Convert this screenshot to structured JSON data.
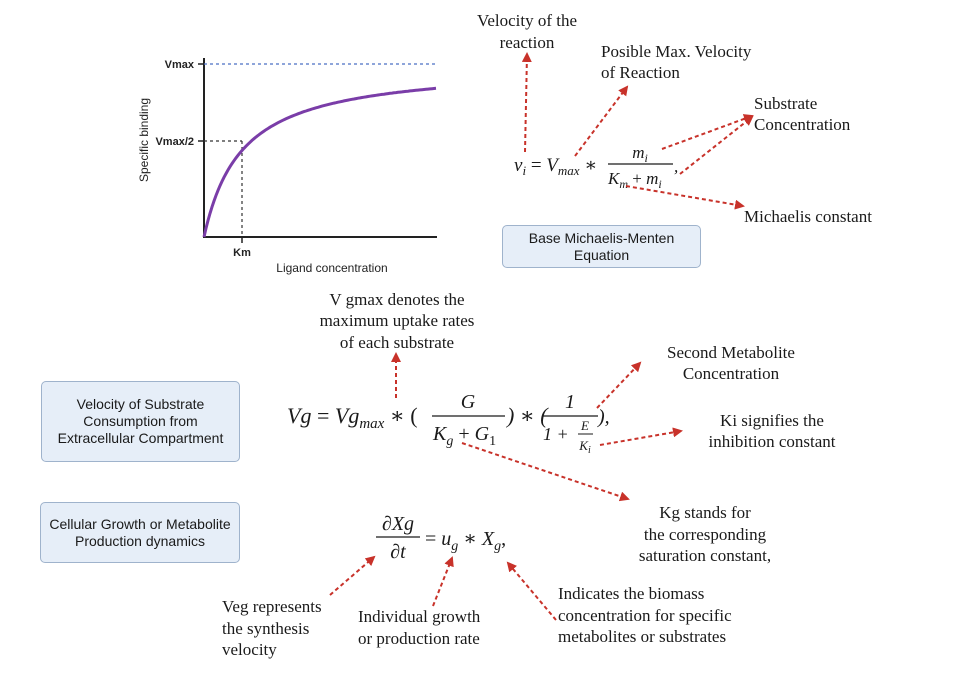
{
  "graph": {
    "y_label": "Specific binding",
    "x_label": "Ligand concentration",
    "vmax_label": "Vmax",
    "vmax_half_label": "Vmax/2",
    "km_label": "Km"
  },
  "equations": {
    "michaelis_menten": "v_i = V_max * m_i / (K_m + m_i),",
    "substrate_consumption": "Vg = Vg_max * (G / (K_g + G_1)) * (1 / (1 + E/K_i)),",
    "growth": "∂Xg/∂t = u_g * X_g,"
  },
  "boxes": {
    "base_mm": "Base Michaelis-Menten Equation",
    "velocity_substrate": "Velocity of Substrate Consumption from Extracellular Compartment",
    "cellular_growth": "Cellular Growth or Metabolite Production dynamics"
  },
  "labels": {
    "velocity_reaction": [
      "Velocity of the",
      "reaction"
    ],
    "possible_max": [
      "Posible Max. Velocity",
      "of Reaction"
    ],
    "substrate_conc": [
      "Substrate",
      "Concentration"
    ],
    "michaelis_constant": "Michaelis constant",
    "vgmax": [
      "V gmax denotes the",
      "maximum uptake rates",
      "of each substrate"
    ],
    "second_metabolite": [
      "Second Metabolite",
      "Concentration"
    ],
    "ki": [
      "Ki signifies the",
      "inhibition constant"
    ],
    "kg": [
      "Kg stands for",
      "the corresponding",
      "saturation constant,"
    ],
    "veg": [
      "Veg represents",
      "the synthesis",
      "velocity"
    ],
    "individual_growth": [
      "Individual growth",
      "or production rate"
    ],
    "biomass": [
      "Indicates the biomass",
      "concentration for specific",
      "metabolites or substrates"
    ]
  },
  "colors": {
    "curve": "#7a3da8",
    "vmax_line": "#4a6fc4",
    "arrow": "#c8322a",
    "box_fill": "#e6eef8",
    "box_border": "#9fb3cc"
  }
}
